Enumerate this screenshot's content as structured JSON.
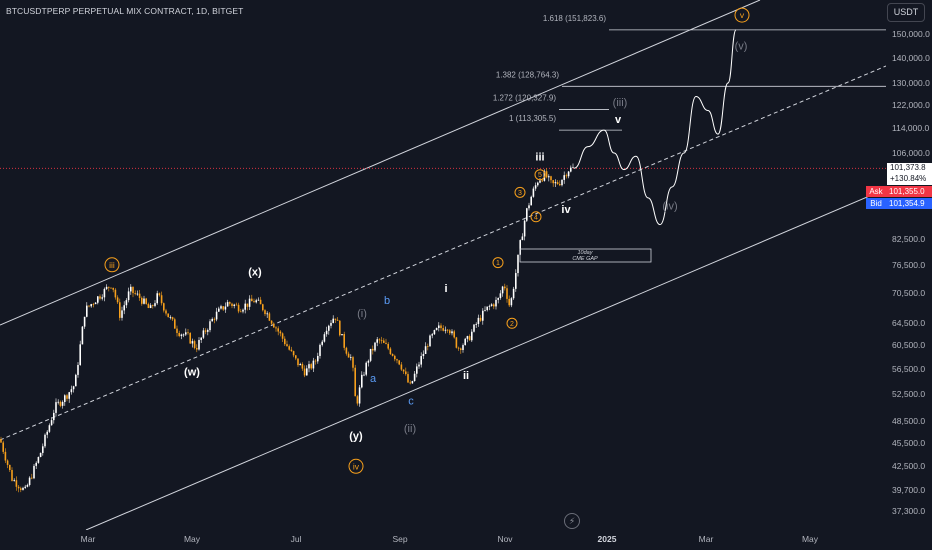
{
  "header": {
    "symbol_title": "BTCUSDTPERP PERPETUAL MIX CONTRACT, 1D, BITGET",
    "currency": "USDT"
  },
  "price_scale": {
    "ticks": [
      "150,000.0",
      "140,000.0",
      "130,000.0",
      "122,000.0",
      "114,000.0",
      "106,000.0",
      "82,500.0",
      "76,500.0",
      "70,500.0",
      "64,500.0",
      "60,500.0",
      "56,500.0",
      "52,500.0",
      "48,500.0",
      "45,500.0",
      "42,500.0",
      "39,700.0",
      "37,300.0"
    ],
    "last_price": "101,373.8",
    "last_change": "+130.84%",
    "ask_label": "Ask",
    "ask_value": "101,355.0",
    "bid_label": "Bid",
    "bid_value": "101,354.9"
  },
  "time_scale": {
    "ticks": [
      "Mar",
      "May",
      "Jul",
      "Sep",
      "Nov",
      "2025",
      "Mar",
      "May"
    ]
  },
  "colors": {
    "background": "#131722",
    "candle_up": "#ffffff",
    "candle_down": "#f7a01c",
    "wave_orange": "#f7a01c",
    "wave_gray": "#787b86",
    "wave_blue": "#5b9cf6",
    "ask": "#f23645",
    "bid": "#2962ff",
    "last_price_line": "#f23645"
  },
  "chart_data": {
    "type": "candlestick",
    "title": "BTCUSDTPERP PERPETUAL MIX CONTRACT, 1D, BITGET",
    "y_scale": "log",
    "x_ticks": [
      "Mar",
      "May",
      "Jul",
      "Sep",
      "Nov",
      "2025",
      "Mar",
      "May"
    ],
    "y_ticks": [
      150000,
      140000,
      130000,
      122000,
      114000,
      106000,
      82500,
      76500,
      70500,
      64500,
      60500,
      56500,
      52500,
      48500,
      45500,
      42500,
      39700,
      37300
    ],
    "last_price": 101373.8,
    "price_path": [
      [
        0,
        46000
      ],
      [
        12,
        41000
      ],
      [
        25,
        39500
      ],
      [
        40,
        44000
      ],
      [
        55,
        50500
      ],
      [
        65,
        52000
      ],
      [
        75,
        54000
      ],
      [
        85,
        67000
      ],
      [
        95,
        69000
      ],
      [
        105,
        71000
      ],
      [
        112,
        72500
      ],
      [
        120,
        66000
      ],
      [
        130,
        71000
      ],
      [
        140,
        69500
      ],
      [
        150,
        67000
      ],
      [
        158,
        70000
      ],
      [
        168,
        66000
      ],
      [
        178,
        63000
      ],
      [
        188,
        62000
      ],
      [
        196,
        60000
      ],
      [
        205,
        63000
      ],
      [
        215,
        66000
      ],
      [
        228,
        68500
      ],
      [
        240,
        67500
      ],
      [
        255,
        69000
      ],
      [
        265,
        67000
      ],
      [
        275,
        64000
      ],
      [
        285,
        61000
      ],
      [
        295,
        58000
      ],
      [
        305,
        56000
      ],
      [
        315,
        57500
      ],
      [
        325,
        63500
      ],
      [
        335,
        66000
      ],
      [
        345,
        60000
      ],
      [
        352,
        58000
      ],
      [
        356,
        50500
      ],
      [
        362,
        55000
      ],
      [
        370,
        59000
      ],
      [
        378,
        61500
      ],
      [
        388,
        60000
      ],
      [
        400,
        57500
      ],
      [
        410,
        53500
      ],
      [
        418,
        57000
      ],
      [
        428,
        61000
      ],
      [
        438,
        63500
      ],
      [
        448,
        64000
      ],
      [
        458,
        60000
      ],
      [
        468,
        61500
      ],
      [
        478,
        65000
      ],
      [
        488,
        67500
      ],
      [
        498,
        69000
      ],
      [
        504,
        72500
      ],
      [
        510,
        67500
      ],
      [
        516,
        75000
      ],
      [
        520,
        81000
      ],
      [
        526,
        89000
      ],
      [
        532,
        94000
      ],
      [
        538,
        98000
      ],
      [
        545,
        99500
      ],
      [
        552,
        96500
      ],
      [
        560,
        97500
      ],
      [
        568,
        101000
      ],
      [
        574,
        101374
      ]
    ],
    "projection": [
      [
        574,
        101374
      ],
      [
        588,
        108000
      ],
      [
        604,
        113300
      ],
      [
        614,
        106000
      ],
      [
        624,
        101000
      ],
      [
        636,
        105000
      ],
      [
        648,
        93000
      ],
      [
        660,
        86000
      ],
      [
        672,
        96000
      ],
      [
        684,
        106000
      ],
      [
        696,
        125000
      ],
      [
        708,
        120000
      ],
      [
        718,
        112000
      ],
      [
        728,
        130000
      ],
      [
        736,
        151823
      ]
    ],
    "fibonacci_levels": [
      {
        "label": "1.618 (151,823.6)",
        "value": 151823.6
      },
      {
        "label": "1.382 (128,764.3)",
        "value": 128764.3
      },
      {
        "label": "1.272 (120,327.9)",
        "value": 120327.9
      },
      {
        "label": "1 (113,305.5)",
        "value": 113305.5
      }
    ],
    "cme_gap_label": [
      "10day",
      "CME GAP"
    ],
    "wave_labels": [
      {
        "text": "iii",
        "style": "orange-circle",
        "x": 112,
        "price": 76500
      },
      {
        "text": "(x)",
        "style": "white",
        "x": 255,
        "price": 75000
      },
      {
        "text": "(w)",
        "style": "white",
        "x": 192,
        "price": 56000
      },
      {
        "text": "(i)",
        "style": "gray",
        "x": 362,
        "price": 66500
      },
      {
        "text": "b",
        "style": "blue",
        "x": 387,
        "price": 69000
      },
      {
        "text": "a",
        "style": "blue",
        "x": 373,
        "price": 55000
      },
      {
        "text": "c",
        "style": "blue",
        "x": 411,
        "price": 51500
      },
      {
        "text": "(ii)",
        "style": "gray",
        "x": 410,
        "price": 47500
      },
      {
        "text": "(y)",
        "style": "white",
        "x": 356,
        "price": 46500
      },
      {
        "text": "iv",
        "style": "orange-circle",
        "x": 356,
        "price": 42500
      },
      {
        "text": "i",
        "style": "white",
        "x": 446,
        "price": 71500
      },
      {
        "text": "ii",
        "style": "white",
        "x": 466,
        "price": 55500
      },
      {
        "text": "1",
        "style": "orange-small",
        "x": 498,
        "price": 77000
      },
      {
        "text": "2",
        "style": "orange-small",
        "x": 512,
        "price": 64500
      },
      {
        "text": "3",
        "style": "orange-small",
        "x": 520,
        "price": 94500
      },
      {
        "text": "4",
        "style": "orange-small",
        "x": 536,
        "price": 88000
      },
      {
        "text": "5",
        "style": "orange-small",
        "x": 540,
        "price": 99500
      },
      {
        "text": "iii",
        "style": "white",
        "x": 540,
        "price": 105000
      },
      {
        "text": "iv",
        "style": "white",
        "x": 566,
        "price": 90000
      },
      {
        "text": "(iii)",
        "style": "gray",
        "x": 620,
        "price": 123000
      },
      {
        "text": "v",
        "style": "white",
        "x": 618,
        "price": 117000
      },
      {
        "text": "(iv)",
        "style": "gray",
        "x": 670,
        "price": 91000
      },
      {
        "text": "v",
        "style": "orange-circle",
        "x": 742,
        "price": 158500
      },
      {
        "text": "(v)",
        "style": "gray",
        "x": 741,
        "price": 145000
      }
    ]
  }
}
